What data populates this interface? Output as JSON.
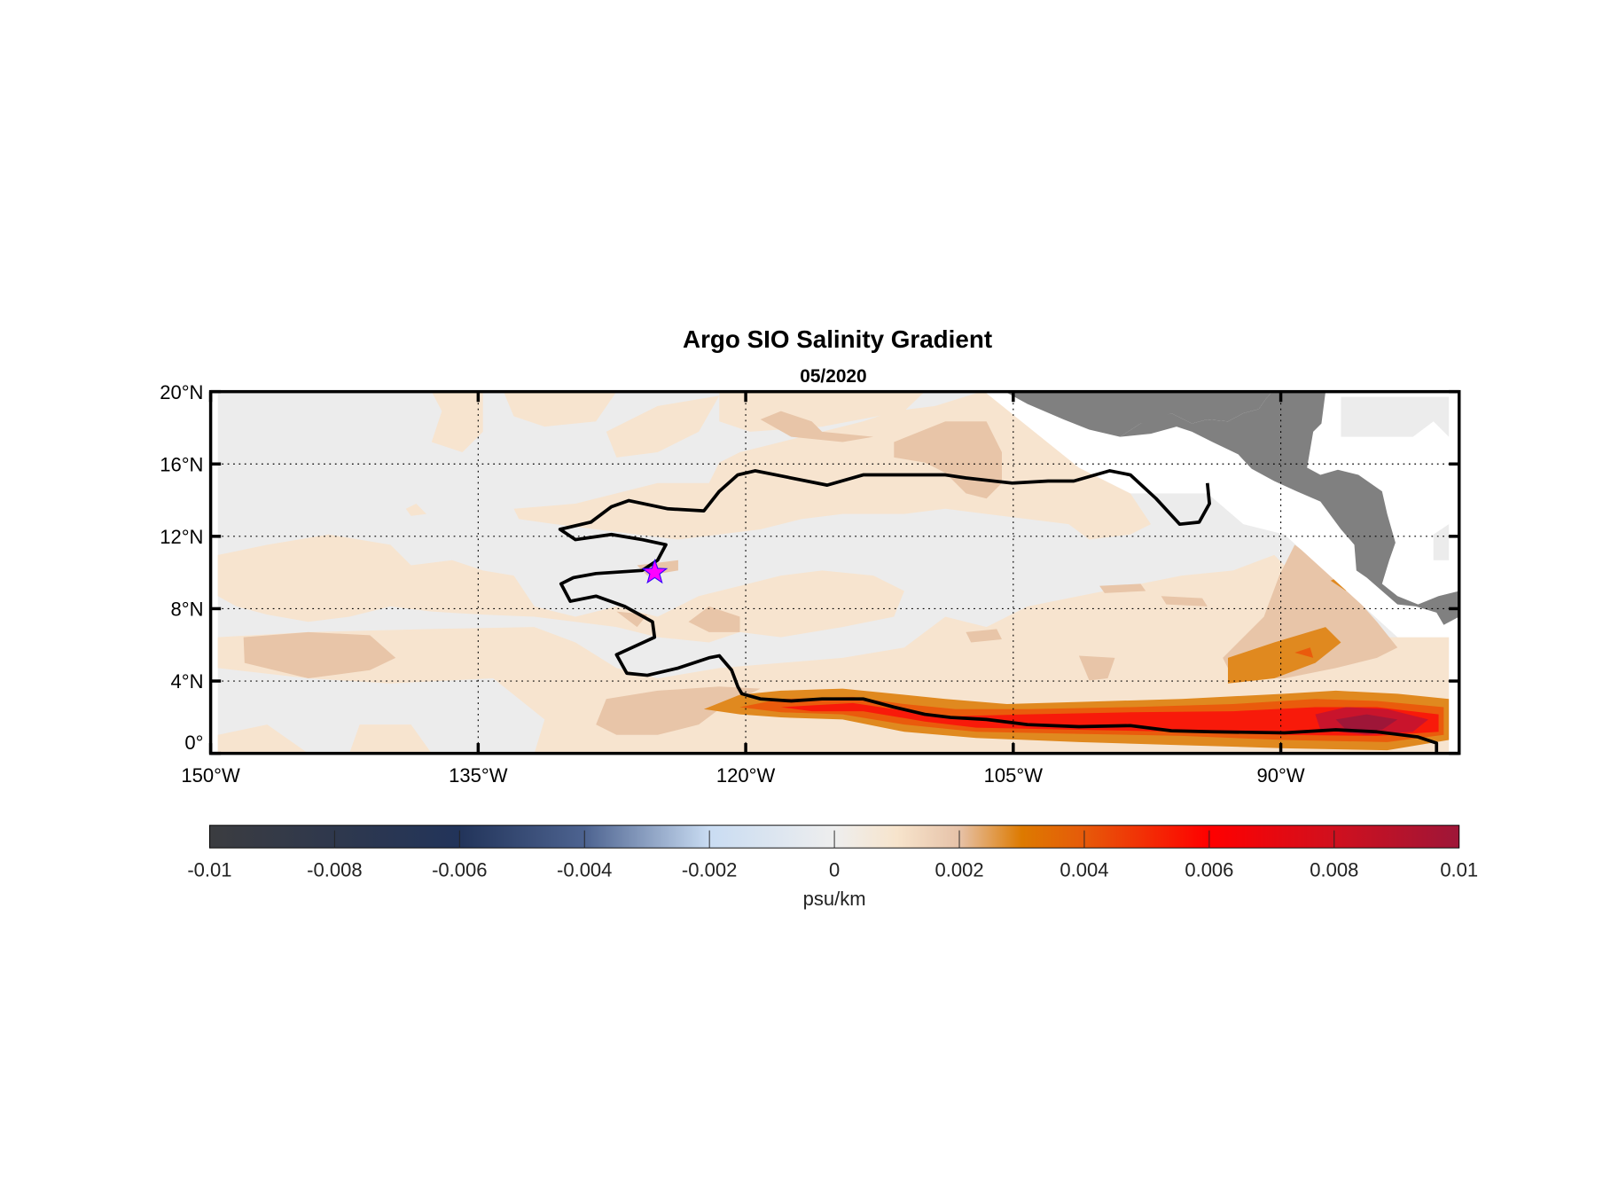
{
  "chart_data": {
    "type": "heatmap",
    "title": "Argo SIO Salinity Gradient",
    "subtitle": "05/2020",
    "projection": "map",
    "lon_range": [
      -150,
      -80
    ],
    "lat_range": [
      0,
      20
    ],
    "x_ticks": [
      {
        "value": -150,
        "label": "150°W"
      },
      {
        "value": -135,
        "label": "135°W"
      },
      {
        "value": -120,
        "label": "120°W"
      },
      {
        "value": -105,
        "label": "105°W"
      },
      {
        "value": -90,
        "label": "90°W"
      }
    ],
    "y_ticks": [
      {
        "value": 0,
        "label": "0°"
      },
      {
        "value": 4,
        "label": "4°N"
      },
      {
        "value": 8,
        "label": "8°N"
      },
      {
        "value": 12,
        "label": "12°N"
      },
      {
        "value": 16,
        "label": "16°N"
      },
      {
        "value": 20,
        "label": "20°N"
      }
    ],
    "grid": "dotted",
    "marker": {
      "type": "star",
      "lon": -125.1,
      "lat": 10.0,
      "color": "#ff00ff"
    },
    "land_color": "#808080",
    "colorbar": {
      "label": "psu/km",
      "range": [
        -0.01,
        0.01
      ],
      "placement": "bottom",
      "ticks": [
        {
          "value": -0.01,
          "label": "-0.01"
        },
        {
          "value": -0.008,
          "label": "-0.008"
        },
        {
          "value": -0.006,
          "label": "-0.006"
        },
        {
          "value": -0.004,
          "label": "-0.004"
        },
        {
          "value": -0.002,
          "label": "-0.002"
        },
        {
          "value": 0,
          "label": "0"
        },
        {
          "value": 0.002,
          "label": "0.002"
        },
        {
          "value": 0.004,
          "label": "0.004"
        },
        {
          "value": 0.006,
          "label": "0.006"
        },
        {
          "value": 0.008,
          "label": "0.008"
        },
        {
          "value": 0.01,
          "label": "0.01"
        }
      ],
      "colors": [
        {
          "value": -0.01,
          "color": "#3b3c40"
        },
        {
          "value": -0.006,
          "color": "#22345a"
        },
        {
          "value": -0.004,
          "color": "#4d6390"
        },
        {
          "value": -0.002,
          "color": "#c9dcf2"
        },
        {
          "value": 0,
          "color": "#eeeeee"
        },
        {
          "value": 0.001,
          "color": "#f7e4cc"
        },
        {
          "value": 0.002,
          "color": "#e6c2a8"
        },
        {
          "value": 0.003,
          "color": "#dd7a00"
        },
        {
          "value": 0.004,
          "color": "#e65a0a"
        },
        {
          "value": 0.006,
          "color": "#ff0000"
        },
        {
          "value": 0.008,
          "color": "#d0101e"
        },
        {
          "value": 0.01,
          "color": "#9e1638"
        }
      ]
    },
    "summary": "Strong positive gradient band (0.004–0.01 psu/km) along 1–3°N from 122°W to 81°W, maximum near 85°W; weak positive (0–0.002) elsewhere"
  }
}
